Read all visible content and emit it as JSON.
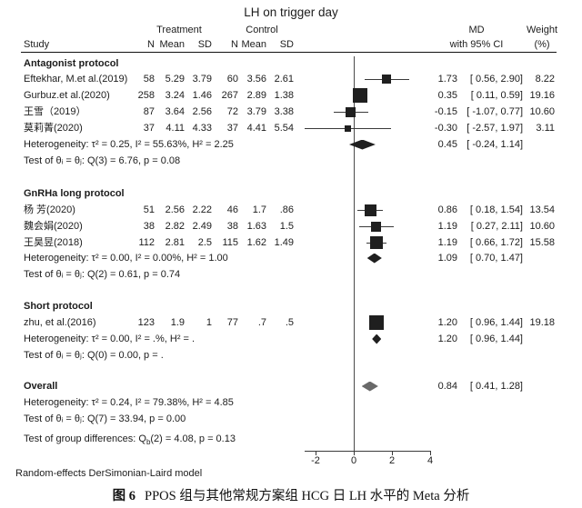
{
  "title": "LH on trigger day",
  "header": {
    "study": "Study",
    "treatment": "Treatment",
    "control": "Control",
    "n1": "N",
    "mean1": "Mean",
    "sd1": "SD",
    "n2": "N",
    "mean2": "Mean",
    "sd2": "SD",
    "md1": "MD",
    "md2": "with 95% CI",
    "wt1": "Weight",
    "wt2": "(%)"
  },
  "sections": [
    {
      "heading": "Antagonist protocol",
      "studies": [
        {
          "name": "Eftekhar, M.et al.(2019)",
          "n1": "58",
          "mean1": "5.29",
          "sd1": "3.79",
          "n2": "60",
          "mean2": "3.56",
          "sd2": "2.61",
          "md": "1.73",
          "ci": "[  0.56,  2.90]",
          "weight": "8.22"
        },
        {
          "name": "Gurbuz.et al.(2020)",
          "n1": "258",
          "mean1": "3.24",
          "sd1": "1.46",
          "n2": "267",
          "mean2": "2.89",
          "sd2": "1.38",
          "md": "0.35",
          "ci": "[  0.11,  0.59]",
          "weight": "19.16"
        },
        {
          "name": "王雪（2019）",
          "n1": "87",
          "mean1": "3.64",
          "sd1": "2.56",
          "n2": "72",
          "mean2": "3.79",
          "sd2": "3.38",
          "md": "-0.15",
          "ci": "[ -1.07,  0.77]",
          "weight": "10.60"
        },
        {
          "name": "莫莉菁(2020)",
          "n1": "37",
          "mean1": "4.11",
          "sd1": "4.33",
          "n2": "37",
          "mean2": "4.41",
          "sd2": "5.54",
          "md": "-0.30",
          "ci": "[ -2.57,  1.97]",
          "weight": "3.11"
        }
      ],
      "heterogeneity": "Heterogeneity: τ² = 0.25, I² = 55.63%, H² = 2.25",
      "pooled_md": "0.45",
      "pooled_ci": "[ -0.24,  1.14]",
      "test": "Test of θᵢ = θⱼ: Q(3) = 6.76, p = 0.08"
    },
    {
      "heading": "GnRHa long protocol",
      "studies": [
        {
          "name": "杨 芳(2020)",
          "n1": "51",
          "mean1": "2.56",
          "sd1": "2.22",
          "n2": "46",
          "mean2": "1.7",
          "sd2": ".86",
          "md": "0.86",
          "ci": "[  0.18,  1.54]",
          "weight": "13.54"
        },
        {
          "name": "魏会娟(2020)",
          "n1": "38",
          "mean1": "2.82",
          "sd1": "2.49",
          "n2": "38",
          "mean2": "1.63",
          "sd2": "1.5",
          "md": "1.19",
          "ci": "[  0.27,  2.11]",
          "weight": "10.60"
        },
        {
          "name": "王昊昱(2018)",
          "n1": "112",
          "mean1": "2.81",
          "sd1": "2.5",
          "n2": "115",
          "mean2": "1.62",
          "sd2": "1.49",
          "md": "1.19",
          "ci": "[  0.66,  1.72]",
          "weight": "15.58"
        }
      ],
      "heterogeneity": "Heterogeneity: τ² = 0.00, I² = 0.00%, H² = 1.00",
      "pooled_md": "1.09",
      "pooled_ci": "[  0.70,  1.47]",
      "test": "Test of θᵢ = θⱼ: Q(2) = 0.61, p = 0.74"
    },
    {
      "heading": "Short protocol",
      "studies": [
        {
          "name": "zhu, et al.(2016)",
          "n1": "123",
          "mean1": "1.9",
          "sd1": "1",
          "n2": "77",
          "mean2": ".7",
          "sd2": ".5",
          "md": "1.20",
          "ci": "[  0.96,  1.44]",
          "weight": "19.18"
        }
      ],
      "heterogeneity": "Heterogeneity: τ² = 0.00, I² = .%, H² = .",
      "pooled_md": "1.20",
      "pooled_ci": "[  0.96,  1.44]",
      "test": "Test of θᵢ = θⱼ: Q(0) = 0.00, p = ."
    }
  ],
  "overall": {
    "heading": "Overall",
    "md": "0.84",
    "ci": "[  0.41,  1.28]",
    "heterogeneity": "Heterogeneity: τ² = 0.24, I² = 79.38%, H² = 4.85",
    "test": "Test of θᵢ = θⱼ: Q(7) = 33.94, p = 0.00",
    "group_test_prefix": "Test of group differences: Q",
    "group_test_sub": "b",
    "group_test_suffix": "(2) = 4.08, p = 0.13"
  },
  "axis": {
    "ticks": [
      "-2",
      "0",
      "2",
      "4"
    ]
  },
  "note": "Random-effects DerSimonian-Laird model",
  "caption": {
    "prefix": "图 6",
    "text": "PPOS 组与其他常规方案组 HCG 日 LH 水平的 Meta 分析"
  },
  "colors": {
    "marker": "#1f1f1f",
    "ci_line": "#3a3a3a",
    "overall_diamond": "#696969"
  },
  "chart_data": {
    "type": "scatter",
    "subtype": "forest-plot",
    "title": "LH on trigger day",
    "effect_measure": "MD with 95% CI",
    "x_ticks": [
      -2,
      0,
      2,
      4
    ],
    "xlim": [
      -2.6,
      4
    ],
    "null_line": 0,
    "model": "Random-effects DerSimonian-Laird model",
    "groups": [
      {
        "name": "Antagonist protocol",
        "studies": [
          {
            "label": "Eftekhar, M.et al.(2019)",
            "treatment": {
              "n": 58,
              "mean": 5.29,
              "sd": 3.79
            },
            "control": {
              "n": 60,
              "mean": 3.56,
              "sd": 2.61
            },
            "md": 1.73,
            "ci": [
              0.56,
              2.9
            ],
            "weight": 8.22
          },
          {
            "label": "Gurbuz.et al.(2020)",
            "treatment": {
              "n": 258,
              "mean": 3.24,
              "sd": 1.46
            },
            "control": {
              "n": 267,
              "mean": 2.89,
              "sd": 1.38
            },
            "md": 0.35,
            "ci": [
              0.11,
              0.59
            ],
            "weight": 19.16
          },
          {
            "label": "王雪（2019）",
            "treatment": {
              "n": 87,
              "mean": 3.64,
              "sd": 2.56
            },
            "control": {
              "n": 72,
              "mean": 3.79,
              "sd": 3.38
            },
            "md": -0.15,
            "ci": [
              -1.07,
              0.77
            ],
            "weight": 10.6
          },
          {
            "label": "莫莉菁(2020)",
            "treatment": {
              "n": 37,
              "mean": 4.11,
              "sd": 4.33
            },
            "control": {
              "n": 37,
              "mean": 4.41,
              "sd": 5.54
            },
            "md": -0.3,
            "ci": [
              -2.57,
              1.97
            ],
            "weight": 3.11
          }
        ],
        "pooled": {
          "md": 0.45,
          "ci": [
            -0.24,
            1.14
          ],
          "heterogeneity": {
            "tau2": 0.25,
            "I2": "55.63%",
            "H2": 2.25
          },
          "Q": "Q(3) = 6.76, p = 0.08"
        }
      },
      {
        "name": "GnRHa long protocol",
        "studies": [
          {
            "label": "杨 芳(2020)",
            "treatment": {
              "n": 51,
              "mean": 2.56,
              "sd": 2.22
            },
            "control": {
              "n": 46,
              "mean": 1.7,
              "sd": 0.86
            },
            "md": 0.86,
            "ci": [
              0.18,
              1.54
            ],
            "weight": 13.54
          },
          {
            "label": "魏会娟(2020)",
            "treatment": {
              "n": 38,
              "mean": 2.82,
              "sd": 2.49
            },
            "control": {
              "n": 38,
              "mean": 1.63,
              "sd": 1.5
            },
            "md": 1.19,
            "ci": [
              0.27,
              2.11
            ],
            "weight": 10.6
          },
          {
            "label": "王昊昱(2018)",
            "treatment": {
              "n": 112,
              "mean": 2.81,
              "sd": 2.5
            },
            "control": {
              "n": 115,
              "mean": 1.62,
              "sd": 1.49
            },
            "md": 1.19,
            "ci": [
              0.66,
              1.72
            ],
            "weight": 15.58
          }
        ],
        "pooled": {
          "md": 1.09,
          "ci": [
            0.7,
            1.47
          ],
          "heterogeneity": {
            "tau2": 0.0,
            "I2": "0.00%",
            "H2": 1.0
          },
          "Q": "Q(2) = 0.61, p = 0.74"
        }
      },
      {
        "name": "Short protocol",
        "studies": [
          {
            "label": "zhu, et al.(2016)",
            "treatment": {
              "n": 123,
              "mean": 1.9,
              "sd": 1
            },
            "control": {
              "n": 77,
              "mean": 0.7,
              "sd": 0.5
            },
            "md": 1.2,
            "ci": [
              0.96,
              1.44
            ],
            "weight": 19.18
          }
        ],
        "pooled": {
          "md": 1.2,
          "ci": [
            0.96,
            1.44
          ],
          "heterogeneity": {
            "tau2": 0.0,
            "I2": ".%",
            "H2": "."
          },
          "Q": "Q(0) = 0.00, p = ."
        }
      }
    ],
    "overall": {
      "md": 0.84,
      "ci": [
        0.41,
        1.28
      ],
      "heterogeneity": {
        "tau2": 0.24,
        "I2": "79.38%",
        "H2": 4.85
      },
      "Q": "Q(7) = 33.94, p = 0.00",
      "group_difference": "Qb(2) = 4.08, p = 0.13"
    }
  }
}
